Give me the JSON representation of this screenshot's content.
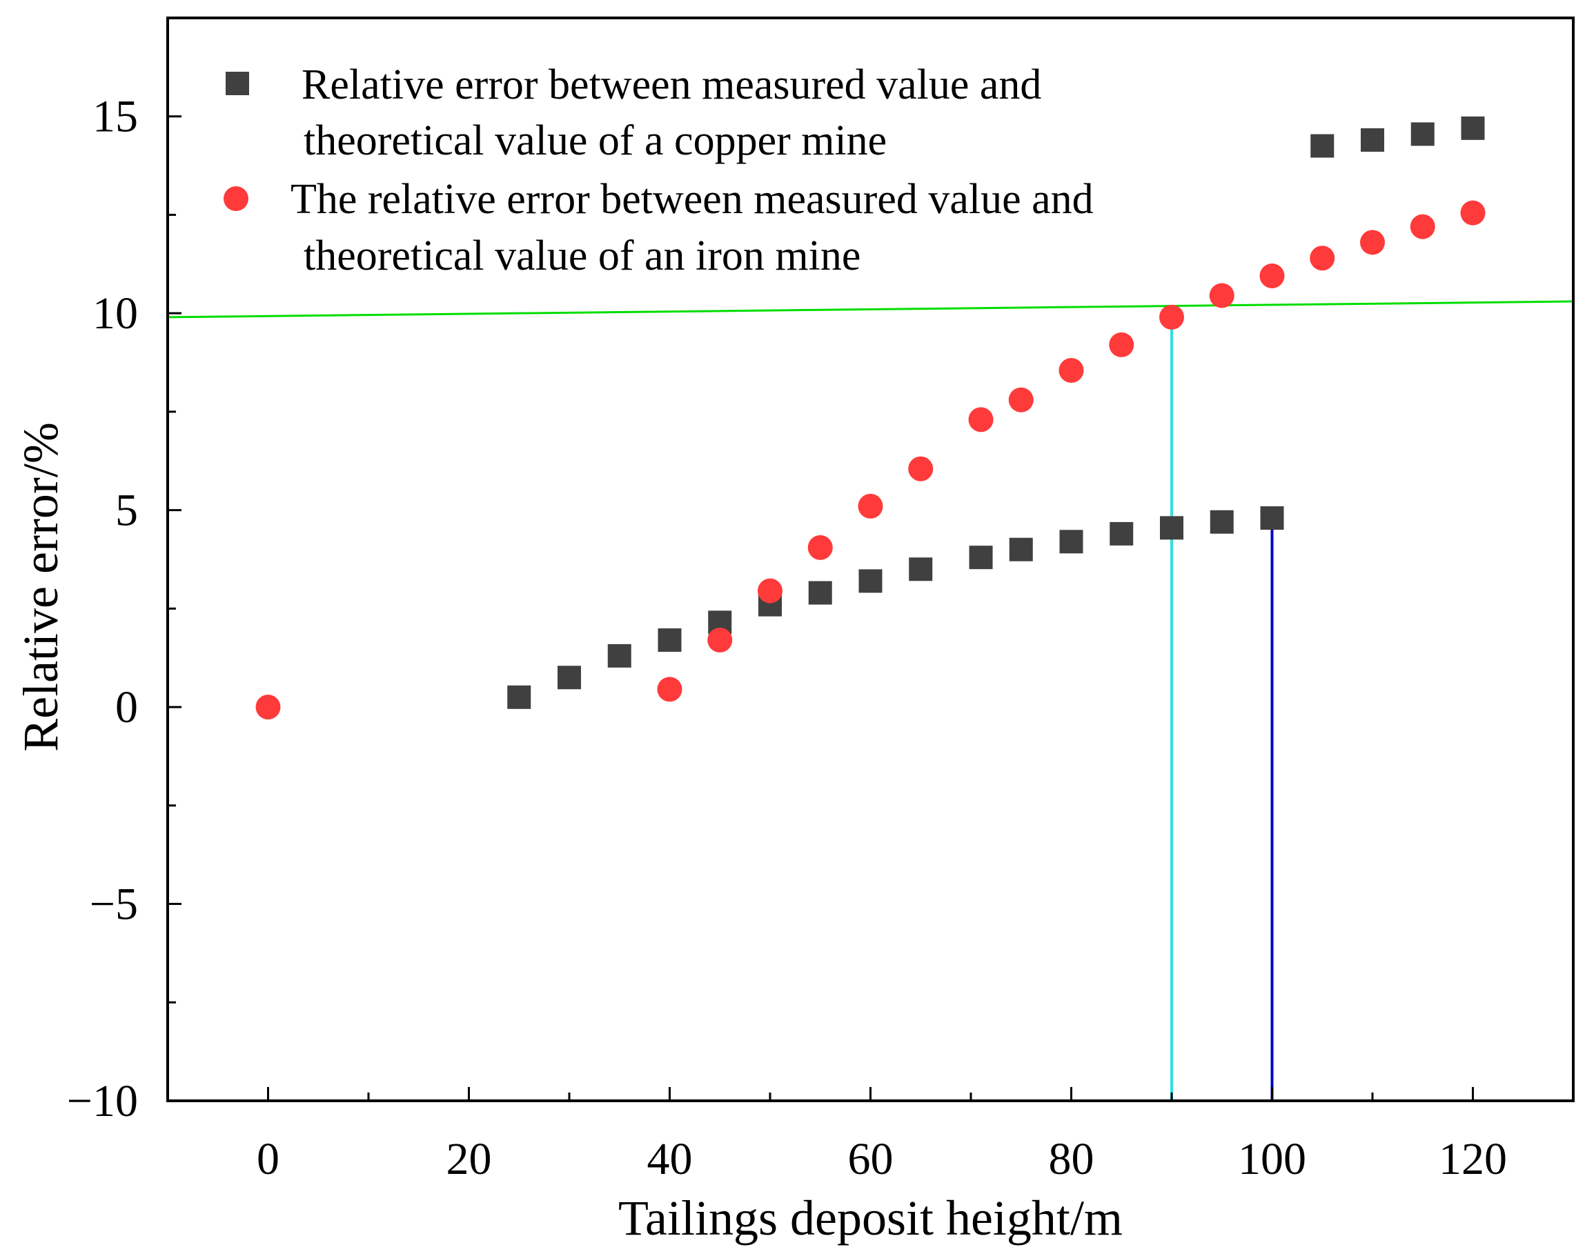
{
  "chart_data": {
    "type": "scatter",
    "xlabel": "Tailings deposit height/m",
    "ylabel": "Relative error/%",
    "xlim": [
      -10,
      130
    ],
    "ylim": [
      -10,
      17.5
    ],
    "x_ticks": [
      0,
      20,
      40,
      60,
      80,
      100,
      120
    ],
    "x_tick_labels": [
      "0",
      "20",
      "40",
      "60",
      "80",
      "100",
      "120"
    ],
    "y_ticks": [
      -10,
      -5,
      0,
      5,
      10,
      15
    ],
    "y_tick_labels": [
      "−10",
      "−5",
      "0",
      "5",
      "10",
      "15"
    ],
    "grid": false,
    "legend_position": "top-left",
    "series": [
      {
        "legend": [
          "Relative error between measured value and",
          "theoretical value of a copper mine"
        ],
        "marker": "square",
        "color": "#404040",
        "x": [
          25,
          30,
          35,
          40,
          45,
          50,
          55,
          60,
          65,
          71,
          75,
          80,
          85,
          90,
          95,
          100,
          105,
          110,
          115,
          120
        ],
        "y": [
          0.25,
          0.75,
          1.3,
          1.7,
          2.15,
          2.6,
          2.9,
          3.2,
          3.5,
          3.8,
          4.0,
          4.2,
          4.4,
          4.55,
          4.7,
          4.8,
          14.25,
          14.4,
          14.55,
          14.7
        ]
      },
      {
        "legend": [
          "The relative error between measured value and",
          "theoretical value of an iron mine"
        ],
        "marker": "circle",
        "color": "#ff3a3a",
        "x": [
          0,
          40,
          45,
          50,
          55,
          60,
          65,
          71,
          75,
          80,
          85,
          90,
          95,
          100,
          105,
          110,
          115,
          120
        ],
        "y": [
          0.0,
          0.45,
          1.7,
          2.95,
          4.05,
          5.1,
          6.05,
          7.3,
          7.8,
          8.55,
          9.2,
          9.9,
          10.45,
          10.95,
          11.4,
          11.8,
          12.2,
          12.55
        ]
      }
    ],
    "reference_lines": [
      {
        "kind": "line",
        "color": "#00dd00",
        "from": [
          -10,
          9.9
        ],
        "to": [
          130,
          10.3
        ]
      },
      {
        "kind": "vertical",
        "color": "#33dddd",
        "x": 90,
        "y_from": -10,
        "y_to": 10
      },
      {
        "kind": "vertical",
        "color": "#0000cc",
        "x": 100,
        "y_from": -10,
        "y_to": 4.8
      }
    ]
  }
}
